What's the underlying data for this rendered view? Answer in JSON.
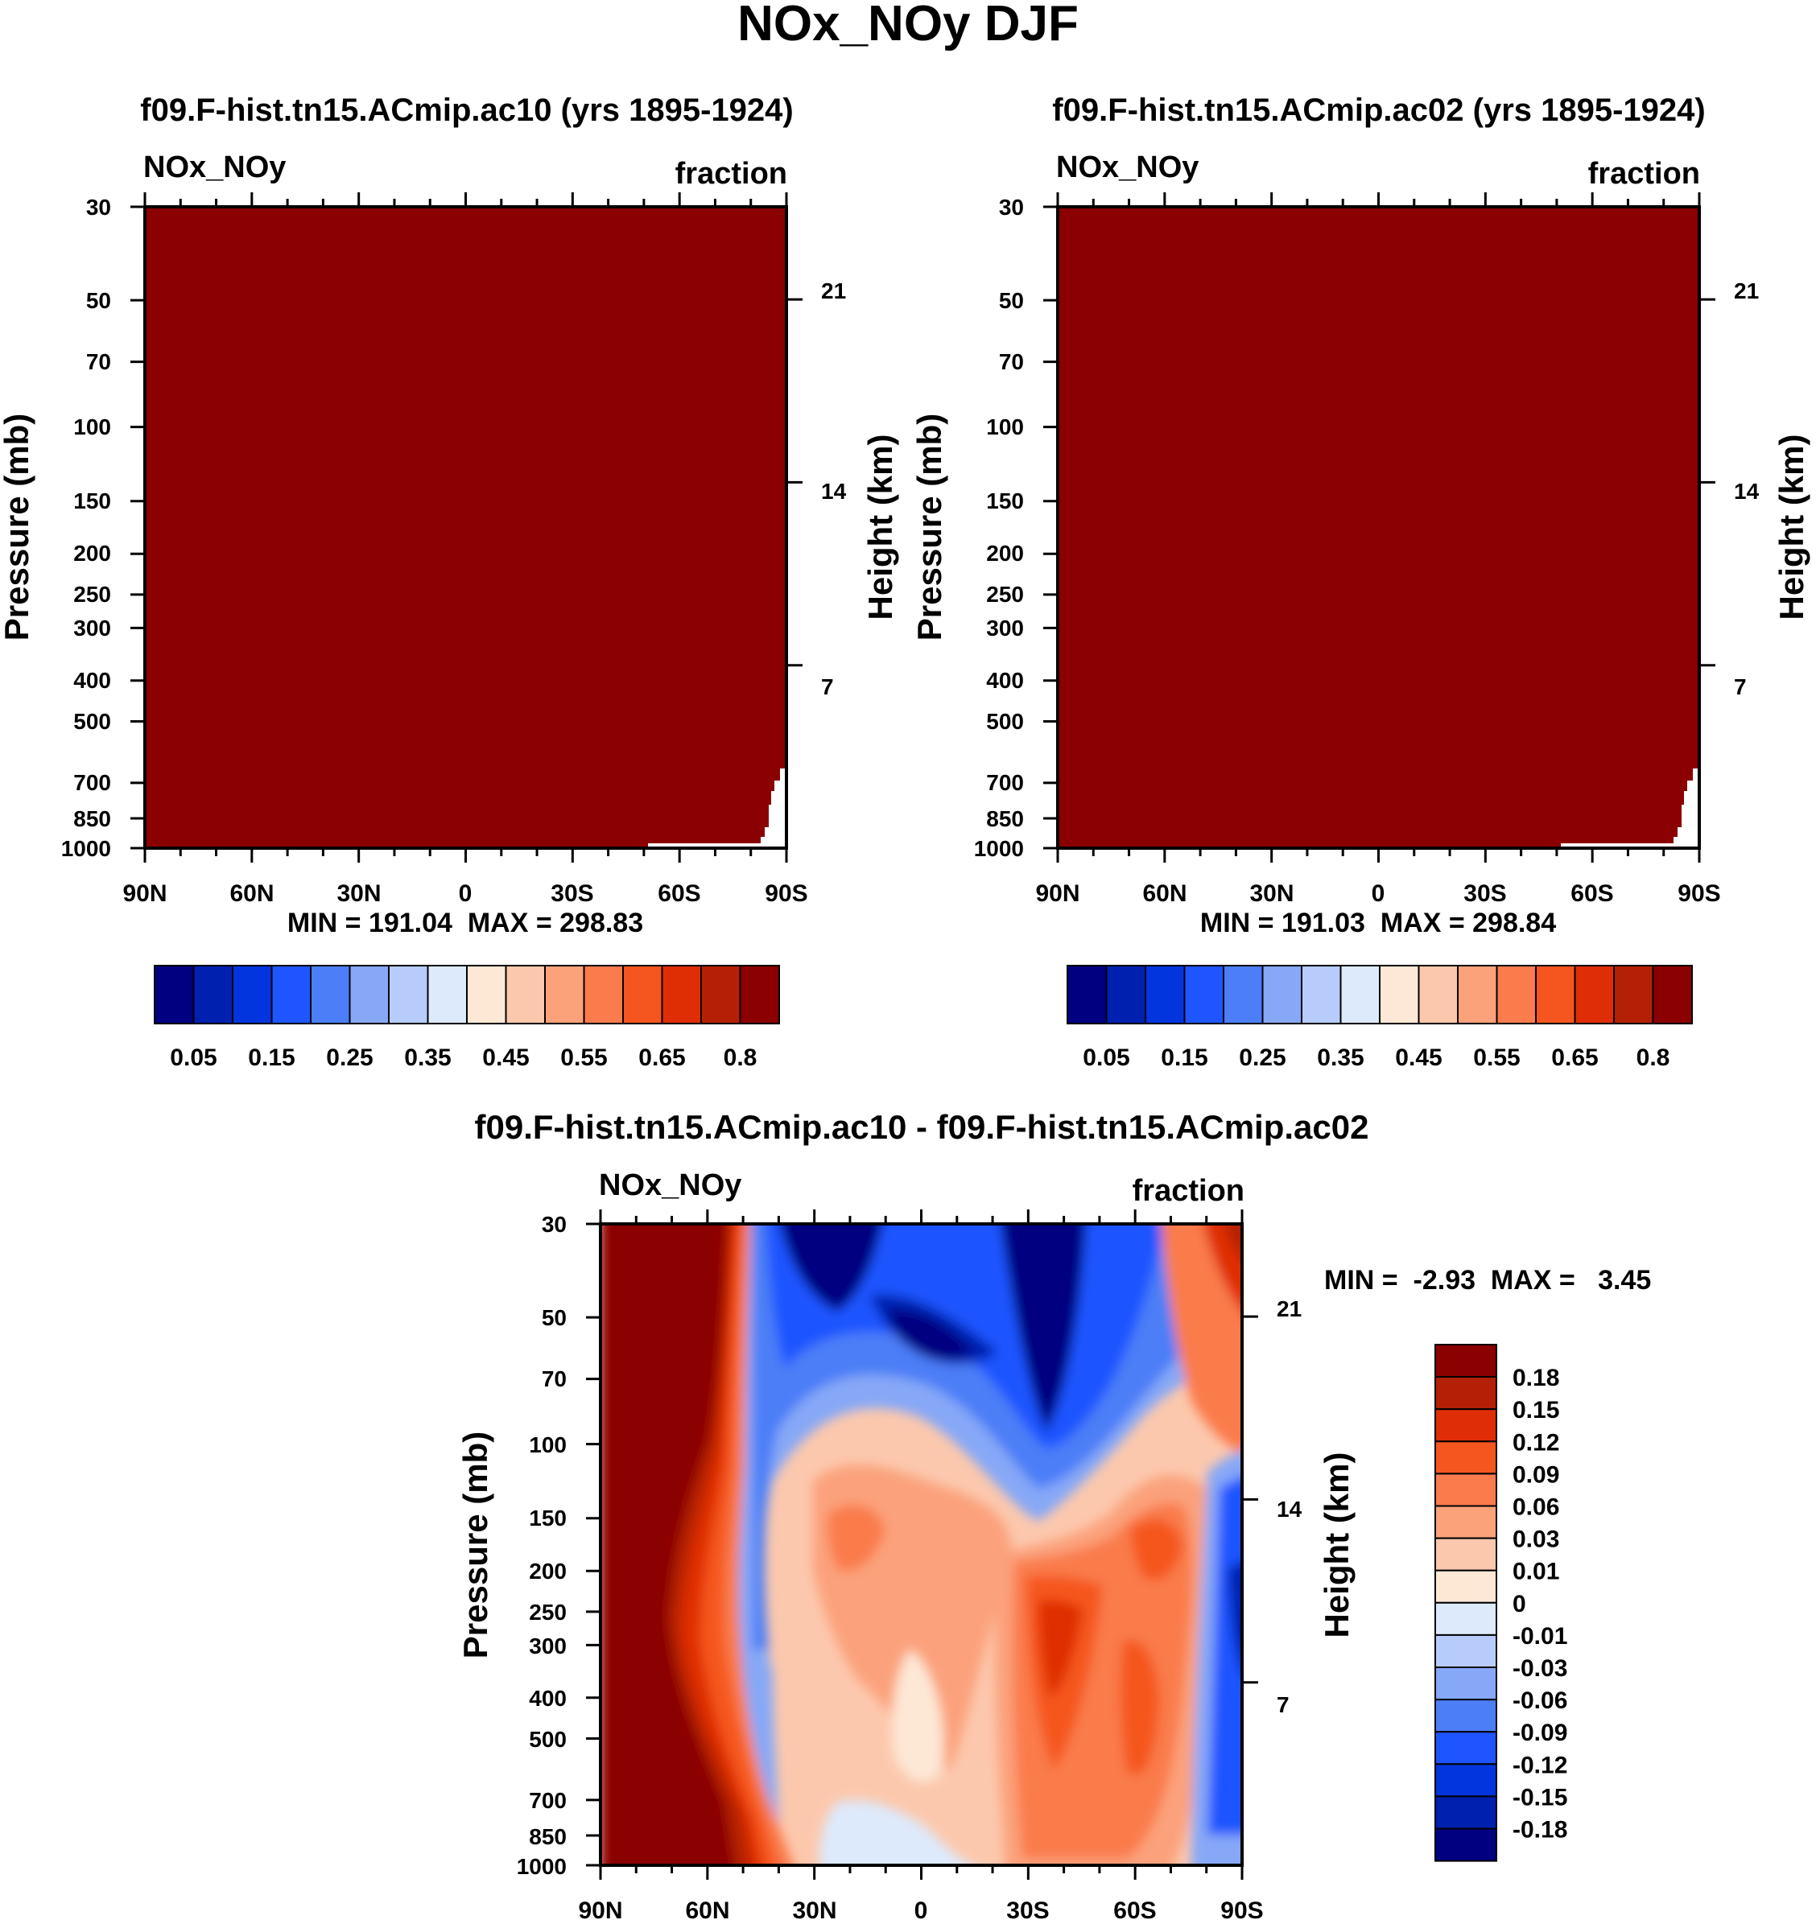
{
  "figure": {
    "title": "NOx_NOy DJF"
  },
  "chart_data": [
    {
      "type": "heatmap",
      "title": "f09.F-hist.tn15.ACmip.ac10 (yrs 1895-1924)",
      "left_label": "NOx_NOy",
      "right_label": "fraction",
      "xlabel": "",
      "ylabel": "Pressure (mb)",
      "y2label": "Height (km)",
      "x_ticks": [
        "90N",
        "60N",
        "30N",
        "0",
        "30S",
        "60S",
        "90S"
      ],
      "y_ticks": [
        30,
        50,
        70,
        100,
        150,
        200,
        250,
        300,
        400,
        500,
        700,
        850,
        1000
      ],
      "y_range_mb": [
        1000,
        30
      ],
      "height_ticks_km": [
        7,
        14,
        21
      ],
      "dominant_fill": "#8b0000",
      "stats": "MIN = 191.04  MAX = 298.83",
      "colorbar": {
        "orientation": "horizontal",
        "colors": [
          "#000080",
          "#0020b0",
          "#0335df",
          "#1f55ff",
          "#4c7ef7",
          "#86a8f7",
          "#b7ccfa",
          "#ddeafc",
          "#fde8d6",
          "#fcc8ad",
          "#fba27b",
          "#fa7b4c",
          "#f5561f",
          "#df2e06",
          "#b42005",
          "#8b0000"
        ],
        "labels": [
          "0.05",
          "0.15",
          "0.25",
          "0.35",
          "0.45",
          "0.55",
          "0.65",
          "0.8"
        ]
      }
    },
    {
      "type": "heatmap",
      "title": "f09.F-hist.tn15.ACmip.ac02 (yrs 1895-1924)",
      "left_label": "NOx_NOy",
      "right_label": "fraction",
      "xlabel": "",
      "ylabel": "Pressure (mb)",
      "y2label": "Height (km)",
      "x_ticks": [
        "90N",
        "60N",
        "30N",
        "0",
        "30S",
        "60S",
        "90S"
      ],
      "y_ticks": [
        30,
        50,
        70,
        100,
        150,
        200,
        250,
        300,
        400,
        500,
        700,
        850,
        1000
      ],
      "y_range_mb": [
        1000,
        30
      ],
      "height_ticks_km": [
        7,
        14,
        21
      ],
      "dominant_fill": "#8b0000",
      "stats": "MIN = 191.03  MAX = 298.84",
      "colorbar": {
        "orientation": "horizontal",
        "colors": [
          "#000080",
          "#0020b0",
          "#0335df",
          "#1f55ff",
          "#4c7ef7",
          "#86a8f7",
          "#b7ccfa",
          "#ddeafc",
          "#fde8d6",
          "#fcc8ad",
          "#fba27b",
          "#fa7b4c",
          "#f5561f",
          "#df2e06",
          "#b42005",
          "#8b0000"
        ],
        "labels": [
          "0.05",
          "0.15",
          "0.25",
          "0.35",
          "0.45",
          "0.55",
          "0.65",
          "0.8"
        ]
      }
    },
    {
      "type": "heatmap",
      "title": "f09.F-hist.tn15.ACmip.ac10 - f09.F-hist.tn15.ACmip.ac02",
      "left_label": "NOx_NOy",
      "right_label": "fraction",
      "xlabel": "",
      "ylabel": "Pressure (mb)",
      "y2label": "Height (km)",
      "x_ticks": [
        "90N",
        "60N",
        "30N",
        "0",
        "30S",
        "60S",
        "90S"
      ],
      "y_ticks": [
        30,
        50,
        70,
        100,
        150,
        200,
        250,
        300,
        400,
        500,
        700,
        850,
        1000
      ],
      "y_range_mb": [
        1000,
        30
      ],
      "height_ticks_km": [
        7,
        14,
        21
      ],
      "stats": "MIN =  -2.93  MAX =   3.45",
      "colorbar": {
        "orientation": "vertical",
        "colors_top_to_bottom": [
          "#8b0000",
          "#b42005",
          "#df2e06",
          "#f5561f",
          "#fa7b4c",
          "#fba27b",
          "#fcc8ad",
          "#fde8d6",
          "#ddeafc",
          "#b7ccfa",
          "#86a8f7",
          "#4c7ef7",
          "#1f55ff",
          "#0335df",
          "#0020b0",
          "#000080"
        ],
        "labels_top_to_bottom": [
          "0.18",
          "0.15",
          "0.12",
          "0.09",
          "0.06",
          "0.03",
          "0.01",
          "0",
          "-0.01",
          "-0.03",
          "-0.06",
          "-0.09",
          "-0.12",
          "-0.15",
          "-0.18"
        ]
      },
      "regions": [
        {
          "name": "northern high-latitude strong positive",
          "lat_from": "90N",
          "lat_to": "45N",
          "p_from": 1000,
          "p_to": 30,
          "level": "0.18+"
        },
        {
          "name": "tropical upper negative",
          "lat_from": "40N",
          "lat_to": "30S",
          "p_from": 100,
          "p_to": 30,
          "level": "-0.18"
        },
        {
          "name": "tropical mid positive",
          "lat_from": "30N",
          "lat_to": "15S",
          "p_from": 700,
          "p_to": 130,
          "level": "0.01 to 0.06"
        },
        {
          "name": "southern subtropical positive",
          "lat_from": "25S",
          "lat_to": "80S",
          "p_from": 900,
          "p_to": 150,
          "level": "0.06 to 0.18"
        },
        {
          "name": "south polar negative",
          "lat_from": "80S",
          "lat_to": "90S",
          "p_from": 700,
          "p_to": 150,
          "level": "-0.09 to -0.18"
        }
      ]
    }
  ]
}
